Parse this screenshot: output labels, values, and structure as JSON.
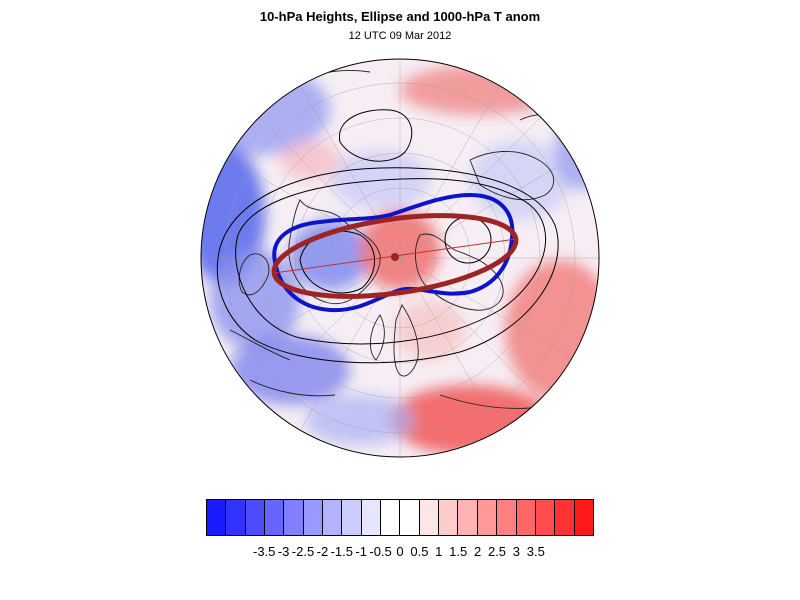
{
  "title": "10-hPa Heights, Ellipse and 1000-hPa T anom",
  "subtitle": "12 UTC 09 Mar 2012",
  "colorbar": {
    "colors": [
      "#1a1aff",
      "#3333ff",
      "#4d4dff",
      "#6666ff",
      "#8080ff",
      "#9999ff",
      "#b3b3ff",
      "#ccccff",
      "#e6e6ff",
      "#ffffff",
      "#ffffff",
      "#ffe6e6",
      "#ffcccc",
      "#ffb3b3",
      "#ff9999",
      "#ff8080",
      "#ff6666",
      "#ff4d4d",
      "#ff3333",
      "#ff1a1a"
    ],
    "labels": [
      "-3.5",
      "-3",
      "-2.5",
      "-2",
      "-1.5",
      "-1",
      "-0.5",
      "0",
      "0.5",
      "1",
      "1.5",
      "2",
      "2.5",
      "3",
      "3.5"
    ]
  },
  "overlay_colors": {
    "ellipse": "#9c2424",
    "blue_contour": "#0a14c8",
    "height_contour": "#000000"
  }
}
